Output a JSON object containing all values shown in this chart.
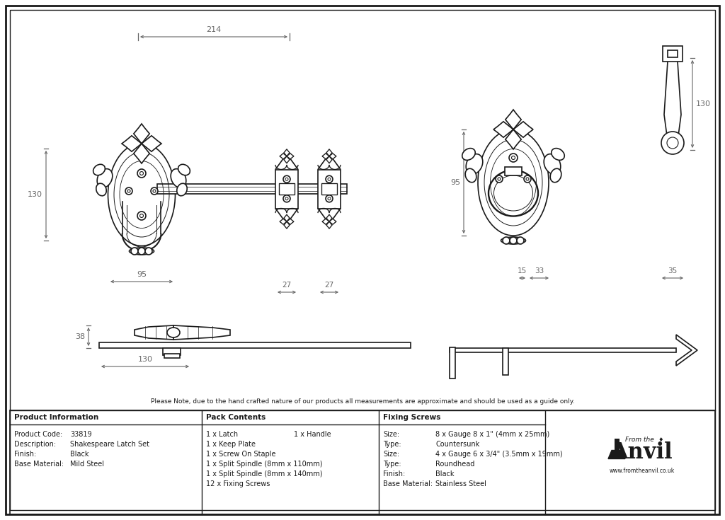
{
  "bg_color": "#ffffff",
  "line_color": "#1a1a1a",
  "dim_color": "#666666",
  "note_text": "Please Note, due to the hand crafted nature of our products all measurements are approximate and should be used as a guide only.",
  "table_headers": [
    "Product Information",
    "Pack Contents",
    "Fixing Screws"
  ],
  "product_info_labels": [
    "Product Code:",
    "Description:",
    "Finish:",
    "Base Material:"
  ],
  "product_info_values": [
    "33819",
    "Shakespeare Latch Set",
    "Black",
    "Mild Steel"
  ],
  "pack_contents_col1": [
    "1 x Latch",
    "1 x Keep Plate",
    "1 x Screw On Staple",
    "1 x Split Spindle (8mm x 110mm)",
    "1 x Split Spindle (8mm x 140mm)",
    "12 x Fixing Screws"
  ],
  "pack_contents_col2": [
    "1 x Handle",
    "",
    "",
    "",
    "",
    ""
  ],
  "fixing_labels": [
    "Size:",
    "Type:",
    "Size:",
    "Type:",
    "Finish:",
    "Base Material:"
  ],
  "fixing_values": [
    "8 x Gauge 8 x 1\" (4mm x 25mm)",
    "Countersunk",
    "4 x Gauge 6 x 3/4\" (3.5mm x 19mm)",
    "Roundhead",
    "Black",
    "Stainless Steel"
  ],
  "dim_214": "214",
  "dim_130_left": "130",
  "dim_95_left": "95",
  "dim_27a": "27",
  "dim_27b": "27",
  "dim_38": "38",
  "dim_130_bottom": "130",
  "dim_15": "15",
  "dim_33": "33",
  "dim_35": "35",
  "dim_130_right": "130",
  "dim_95_right": "95"
}
